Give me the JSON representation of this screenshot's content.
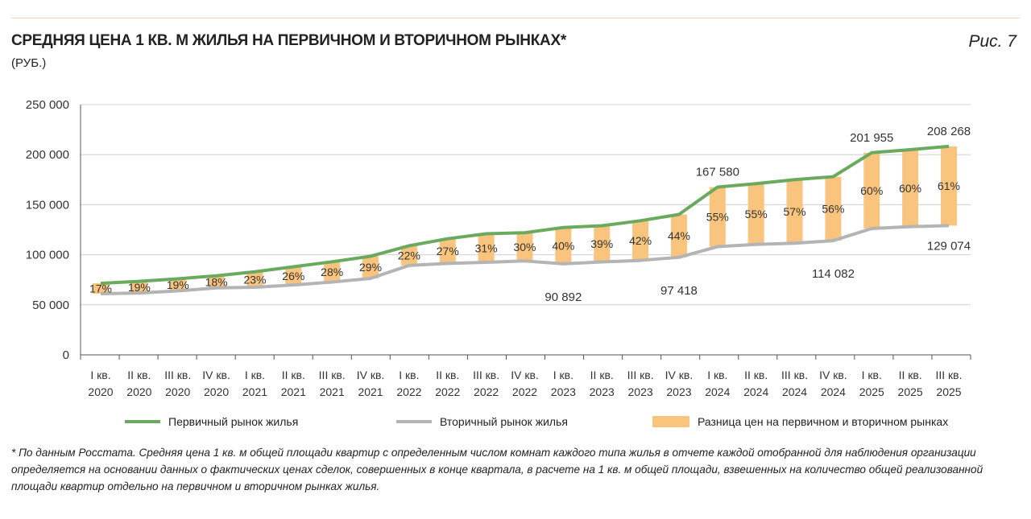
{
  "header": {
    "title": "СРЕДНЯЯ ЦЕНА 1 КВ. М ЖИЛЬЯ НА ПЕРВИЧНОМ И ВТОРИЧНОМ РЫНКАХ*",
    "subtitle": "(РУБ.)",
    "figure": "Рис. 7"
  },
  "footnote": "* По данным Росстата. Средняя цена 1 кв. м общей площади квартир с определенным числом комнат каждого типа жилья в отчете каждой отобранной для наблюдения организации определяется на основании данных о фактических ценах сделок, совершенных в конце квартала, в расчете на 1 кв. м общей площади, взвешенных на количество общей реализованной площади квартир отдельно на первичном и вторичном рынках жилья.",
  "chart_data": {
    "type": "line",
    "ylim": [
      0,
      250000
    ],
    "yticks": [
      "0",
      "50 000",
      "100 000",
      "150 000",
      "200 000",
      "250 000"
    ],
    "grid": true,
    "legend": "bottom",
    "categories": [
      [
        "I кв.",
        "2020"
      ],
      [
        "II кв.",
        "2020"
      ],
      [
        "III кв.",
        "2020"
      ],
      [
        "IV кв.",
        "2020"
      ],
      [
        "I кв.",
        "2021"
      ],
      [
        "II кв.",
        "2021"
      ],
      [
        "III кв.",
        "2021"
      ],
      [
        "IV кв.",
        "2021"
      ],
      [
        "I кв.",
        "2022"
      ],
      [
        "II кв.",
        "2022"
      ],
      [
        "III кв.",
        "2022"
      ],
      [
        "IV кв.",
        "2022"
      ],
      [
        "I кв.",
        "2023"
      ],
      [
        "II кв.",
        "2023"
      ],
      [
        "III кв.",
        "2023"
      ],
      [
        "IV кв.",
        "2023"
      ],
      [
        "I кв.",
        "2024"
      ],
      [
        "II кв.",
        "2024"
      ],
      [
        "III кв.",
        "2024"
      ],
      [
        "IV кв.",
        "2024"
      ],
      [
        "I кв.",
        "2025"
      ],
      [
        "II кв.",
        "2025"
      ],
      [
        "III кв.",
        "2025"
      ]
    ],
    "series": [
      {
        "name": "Первичный рынок жилья",
        "color": "#6aaa5e",
        "values": [
          71500,
          73500,
          76000,
          79000,
          83000,
          88000,
          93000,
          98500,
          109000,
          116000,
          121000,
          122000,
          127250,
          129000,
          134000,
          140300,
          167580,
          171000,
          175000,
          178000,
          201955,
          205000,
          208268
        ],
        "labels": {
          "16": "167 580",
          "20": "201 955",
          "22": "208 268"
        }
      },
      {
        "name": "Вторичный рынок жилья",
        "color": "#b4b4b4",
        "values": [
          61100,
          61800,
          63900,
          66900,
          67500,
          69800,
          72700,
          76400,
          89300,
          91300,
          92400,
          93800,
          90892,
          92800,
          94400,
          97418,
          108100,
          110300,
          111500,
          114082,
          126200,
          128100,
          129074
        ],
        "labels": {
          "12": "90 892",
          "15": "97 418",
          "19": "114 082",
          "22": "129 074"
        }
      },
      {
        "name": "Разница цен на первичном и вторичном рынках",
        "color": "#f9c47e",
        "values": [
          "17%",
          "19%",
          "19%",
          "18%",
          "23%",
          "26%",
          "28%",
          "29%",
          "22%",
          "27%",
          "31%",
          "30%",
          "40%",
          "39%",
          "42%",
          "44%",
          "55%",
          "55%",
          "57%",
          "56%",
          "60%",
          "60%",
          "61%"
        ]
      }
    ]
  }
}
